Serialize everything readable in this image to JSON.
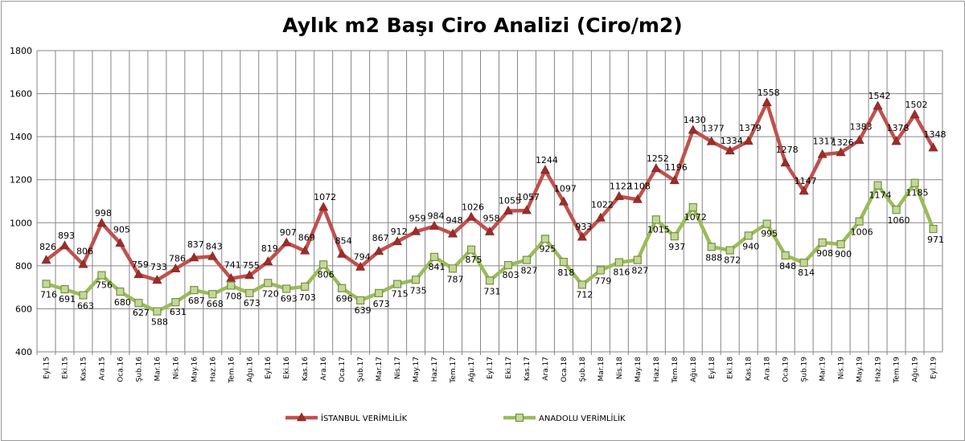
{
  "chart_data": {
    "type": "line",
    "title": "Aylık m2 Başı Ciro Analizi (Ciro/m2)",
    "xlabel": "",
    "ylabel": "",
    "ylim": [
      400,
      1800
    ],
    "yticks": [
      400,
      600,
      800,
      1000,
      1200,
      1400,
      1600,
      1800
    ],
    "grid": "on",
    "legend_position": "bottom",
    "categories": [
      "Eyl.15",
      "Eki.15",
      "Kas.15",
      "Ara.15",
      "Oca.16",
      "Şub.16",
      "Mar.16",
      "Nis.16",
      "May.16",
      "Haz.16",
      "Tem.16",
      "Ağu.16",
      "Eyl.16",
      "Eki.16",
      "Kas.16",
      "Ara.16",
      "Oca.17",
      "Şub.17",
      "Mar.17",
      "Nis.17",
      "May.17",
      "Haz.17",
      "Tem.17",
      "Ağu.17",
      "Eyl.17",
      "Eki.17",
      "Kas.17",
      "Ara.17",
      "Oca.18",
      "Şub.18",
      "Mar.18",
      "Nis.18",
      "May.18",
      "Haz.18",
      "Tem.18",
      "Ağu.18",
      "Eyl.18",
      "Eki.18",
      "Kas.18",
      "Ara.18",
      "Oca.19",
      "Şub.19",
      "Mar.19",
      "Nis.19",
      "May.19",
      "Haz.19",
      "Tem.19",
      "Ağu.19",
      "Eyl.19"
    ],
    "series": [
      {
        "name": "İSTANBUL VERİMLİLİK",
        "color": "#c0504d",
        "marker_color": "#9b2d2a",
        "marker": "triangle",
        "values": [
          826,
          893,
          806,
          998,
          905,
          759,
          733,
          786,
          837,
          843,
          741,
          755,
          819,
          907,
          869,
          1072,
          854,
          794,
          867,
          912,
          959,
          984,
          948,
          1026,
          958,
          1055,
          1057,
          1244,
          1097,
          933,
          1022,
          1122,
          1108,
          1252,
          1196,
          1430,
          1377,
          1334,
          1379,
          1558,
          1278,
          1147,
          1317,
          1326,
          1383,
          1542,
          1378,
          1502,
          1348
        ]
      },
      {
        "name": "ANADOLU VERİMLİLİK",
        "color": "#9bbb59",
        "marker_color": "#c4d79b",
        "marker": "square",
        "values": [
          716,
          691,
          663,
          756,
          680,
          627,
          588,
          631,
          687,
          668,
          708,
          673,
          720,
          693,
          703,
          806,
          696,
          639,
          673,
          715,
          735,
          841,
          787,
          875,
          731,
          803,
          827,
          925,
          818,
          712,
          779,
          816,
          827,
          1015,
          937,
          1072,
          888,
          872,
          940,
          995,
          848,
          814,
          908,
          900,
          1006,
          1174,
          1060,
          1185,
          971
        ]
      }
    ]
  }
}
